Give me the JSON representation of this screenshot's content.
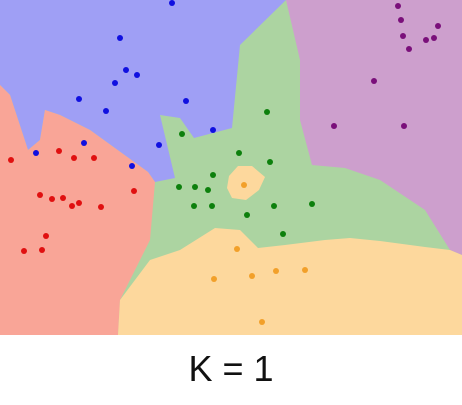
{
  "caption": "K = 1",
  "colors": {
    "blue_region": "#9f9ff5",
    "purple_region": "#cd9fcd",
    "green_region": "#acd4a1",
    "red_region": "#f9a597",
    "orange_region": "#fdd89d",
    "blue_point": "#1010e0",
    "purple_point": "#7a0f7a",
    "green_point": "#0d800d",
    "red_point": "#e01010",
    "orange_point": "#f2a02a"
  },
  "chart_data": {
    "type": "scatter",
    "title": "K = 1",
    "classes": [
      "blue",
      "purple",
      "green",
      "red",
      "orange"
    ],
    "xlim": [
      0,
      462
    ],
    "ylim": [
      0,
      335
    ],
    "series": [
      {
        "class": "blue",
        "points": [
          [
            172,
            3
          ],
          [
            120,
            38
          ],
          [
            126,
            70
          ],
          [
            137,
            75
          ],
          [
            115,
            83
          ],
          [
            79,
            99
          ],
          [
            186,
            101
          ],
          [
            106,
            111
          ],
          [
            213,
            130
          ],
          [
            84,
            143
          ],
          [
            159,
            145
          ],
          [
            36,
            153
          ],
          [
            132,
            166
          ]
        ]
      },
      {
        "class": "purple",
        "points": [
          [
            398,
            6
          ],
          [
            401,
            20
          ],
          [
            438,
            26
          ],
          [
            403,
            36
          ],
          [
            434,
            38
          ],
          [
            426,
            40
          ],
          [
            409,
            49
          ],
          [
            374,
            81
          ],
          [
            334,
            126
          ],
          [
            404,
            126
          ]
        ]
      },
      {
        "class": "green",
        "points": [
          [
            267,
            112
          ],
          [
            182,
            134
          ],
          [
            239,
            153
          ],
          [
            270,
            162
          ],
          [
            213,
            175
          ],
          [
            179,
            187
          ],
          [
            195,
            187
          ],
          [
            208,
            190
          ],
          [
            194,
            206
          ],
          [
            212,
            206
          ],
          [
            312,
            204
          ],
          [
            274,
            206
          ],
          [
            247,
            215
          ],
          [
            283,
            234
          ]
        ]
      },
      {
        "class": "red",
        "points": [
          [
            11,
            160
          ],
          [
            59,
            151
          ],
          [
            94,
            158
          ],
          [
            74,
            158
          ],
          [
            40,
            195
          ],
          [
            52,
            199
          ],
          [
            63,
            198
          ],
          [
            79,
            203
          ],
          [
            72,
            206
          ],
          [
            101,
            207
          ],
          [
            134,
            191
          ],
          [
            46,
            236
          ],
          [
            24,
            251
          ],
          [
            42,
            250
          ]
        ]
      },
      {
        "class": "orange",
        "points": [
          [
            244,
            185
          ],
          [
            237,
            249
          ],
          [
            214,
            279
          ],
          [
            252,
            276
          ],
          [
            276,
            271
          ],
          [
            305,
            270
          ],
          [
            262,
            322
          ]
        ]
      }
    ]
  }
}
